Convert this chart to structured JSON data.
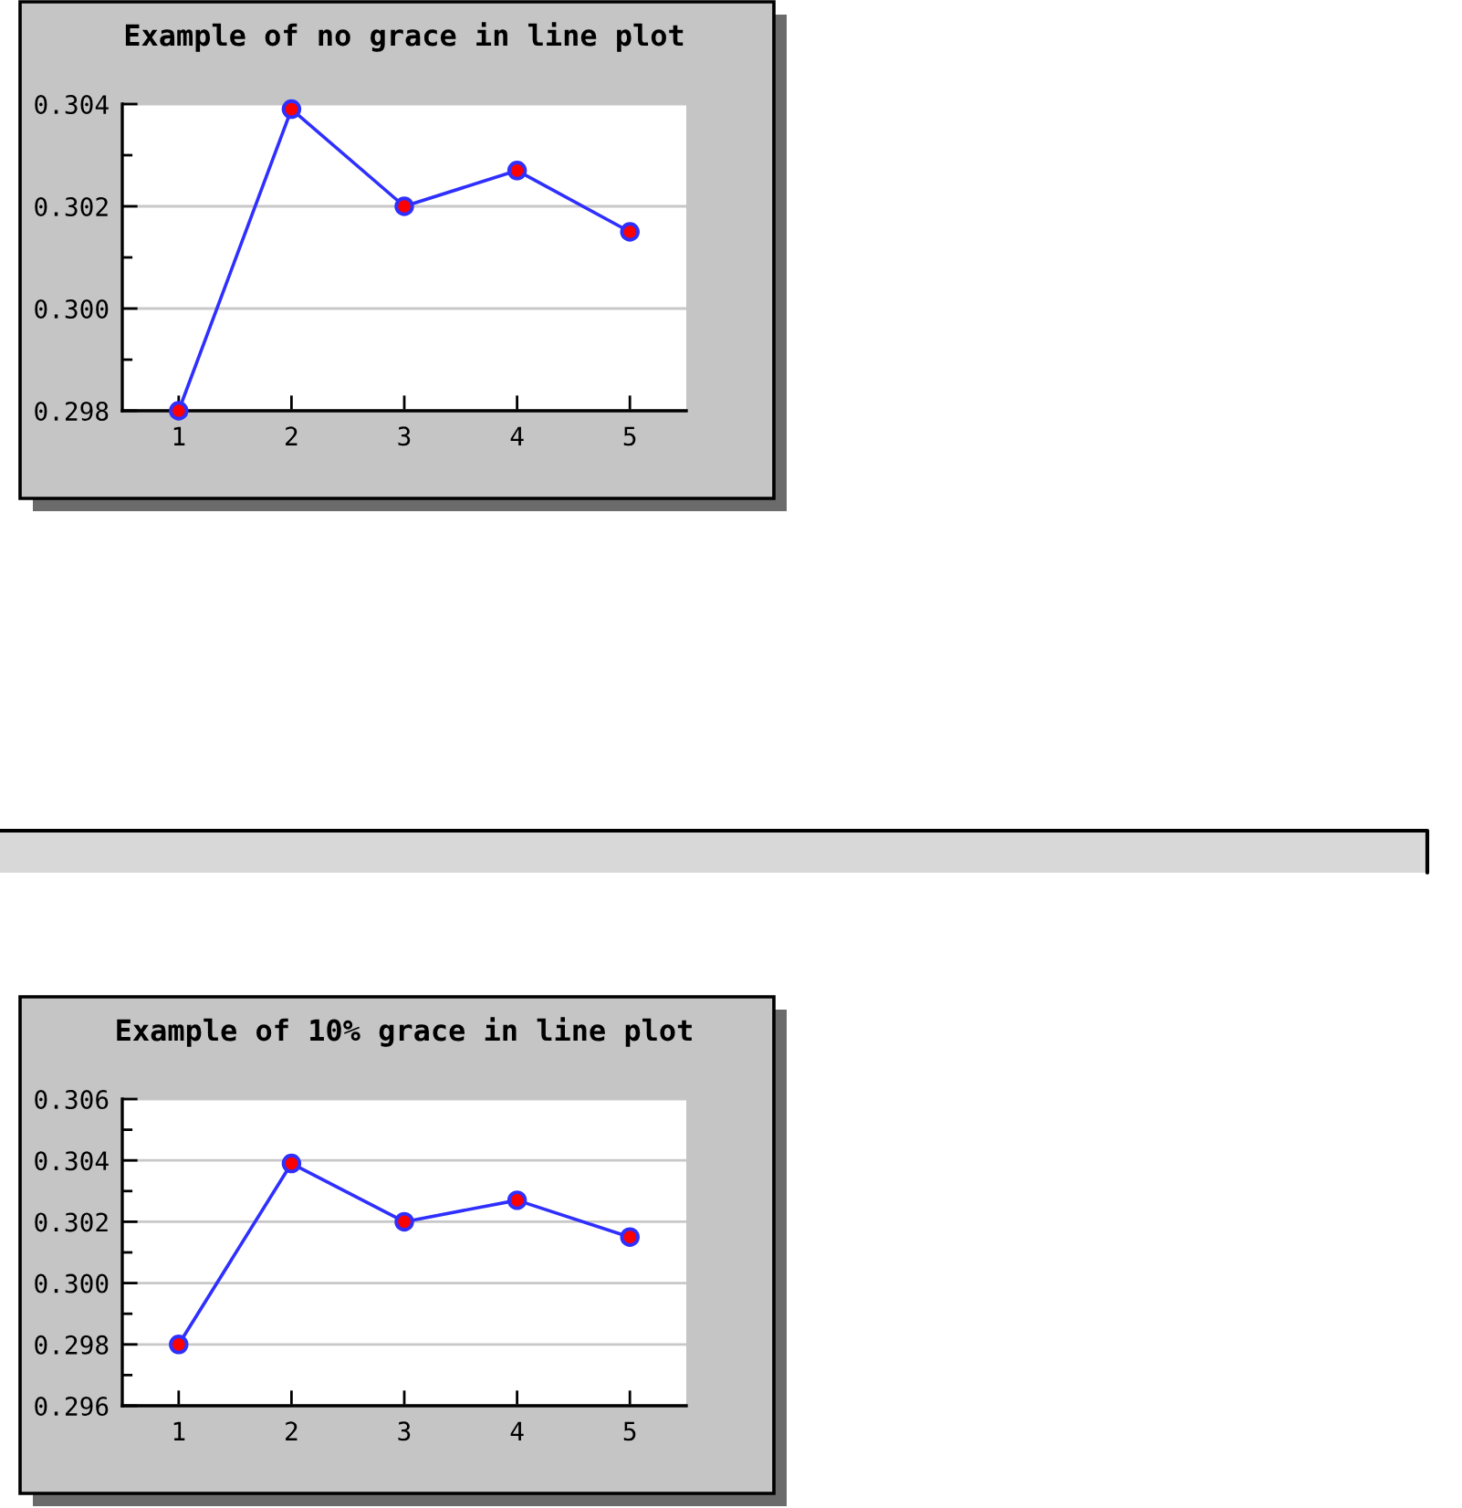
{
  "chart_data": [
    {
      "type": "line",
      "title": "Example of no grace in line plot",
      "categories": [
        "1",
        "2",
        "3",
        "4",
        "5"
      ],
      "series": [
        {
          "color": "#2f2fff",
          "colors": [
            "#ff0000",
            "#ff0000",
            "#ff0000",
            "#ff0000",
            "#ff0000"
          ],
          "values": [
            0.298,
            0.3039,
            0.302,
            0.3027,
            0.3015
          ]
        }
      ],
      "ylim": [
        0.298,
        0.304
      ],
      "yticks": [
        0.298,
        {
          "value": 0.299,
          "label": null
        },
        {
          "value": 0.3,
          "label": "0.300"
        },
        {
          "value": 0.301,
          "label": null
        },
        0.302,
        {
          "value": 0.303,
          "label": null
        },
        0.304
      ],
      "grid": "y",
      "marker": "circle",
      "line_style": "solid"
    },
    {
      "type": "line",
      "title": "Example of 10% grace in line plot",
      "categories": [
        "1",
        "2",
        "3",
        "4",
        "5"
      ],
      "series": [
        {
          "color": "#2f2fff",
          "colors": [
            "#ff0000",
            "#ff0000",
            "#ff0000",
            "#ff0000",
            "#ff0000"
          ],
          "values": [
            0.298,
            0.3039,
            0.302,
            0.3027,
            0.3015
          ]
        }
      ],
      "ylim": [
        0.296,
        0.306
      ],
      "yticks": [
        0.296,
        {
          "value": 0.297,
          "label": null
        },
        0.298,
        {
          "value": 0.299,
          "label": null
        },
        {
          "value": 0.3,
          "label": "0.300"
        },
        {
          "value": 0.301,
          "label": null
        },
        0.302,
        {
          "value": 0.303,
          "label": null
        },
        0.304,
        {
          "value": 0.305,
          "label": null
        },
        0.306
      ],
      "grid": "y",
      "marker": "circle",
      "line_style": "solid"
    }
  ]
}
